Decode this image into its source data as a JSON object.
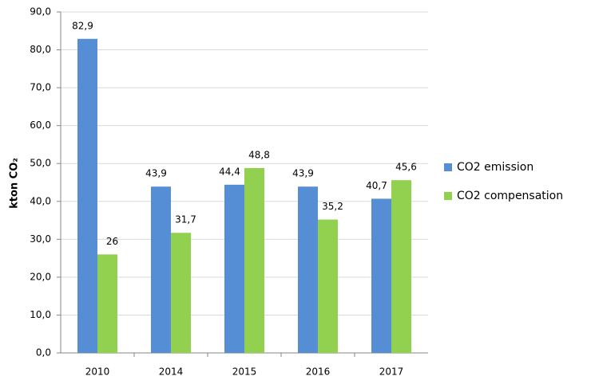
{
  "chart_data": {
    "type": "bar",
    "ylabel": "kton CO₂",
    "categories": [
      "2010",
      "2014",
      "2015",
      "2016",
      "2017"
    ],
    "series": [
      {
        "name": "CO2 emission",
        "color": "#558ed5",
        "values": [
          82.9,
          43.9,
          44.4,
          43.9,
          40.7
        ],
        "value_labels": [
          "82,9",
          "43,9",
          "44,4",
          "43,9",
          "40,7"
        ]
      },
      {
        "name": "CO2 compensation",
        "color": "#92d050",
        "values": [
          26,
          31.7,
          48.8,
          35.2,
          45.6
        ],
        "value_labels": [
          "26",
          "31,7",
          "48,8",
          "35,2",
          "45,6"
        ]
      }
    ],
    "ylim": [
      0,
      90
    ],
    "yticks": [
      {
        "value": 0,
        "label": "0,0"
      },
      {
        "value": 10,
        "label": "10,0"
      },
      {
        "value": 20,
        "label": "20,0"
      },
      {
        "value": 30,
        "label": "30,0"
      },
      {
        "value": 40,
        "label": "40,0"
      },
      {
        "value": 50,
        "label": "50,0"
      },
      {
        "value": 60,
        "label": "60,0"
      },
      {
        "value": 70,
        "label": "70,0"
      },
      {
        "value": 80,
        "label": "80,0"
      },
      {
        "value": 90,
        "label": "90,0"
      }
    ],
    "grid": true,
    "legend": "right"
  }
}
